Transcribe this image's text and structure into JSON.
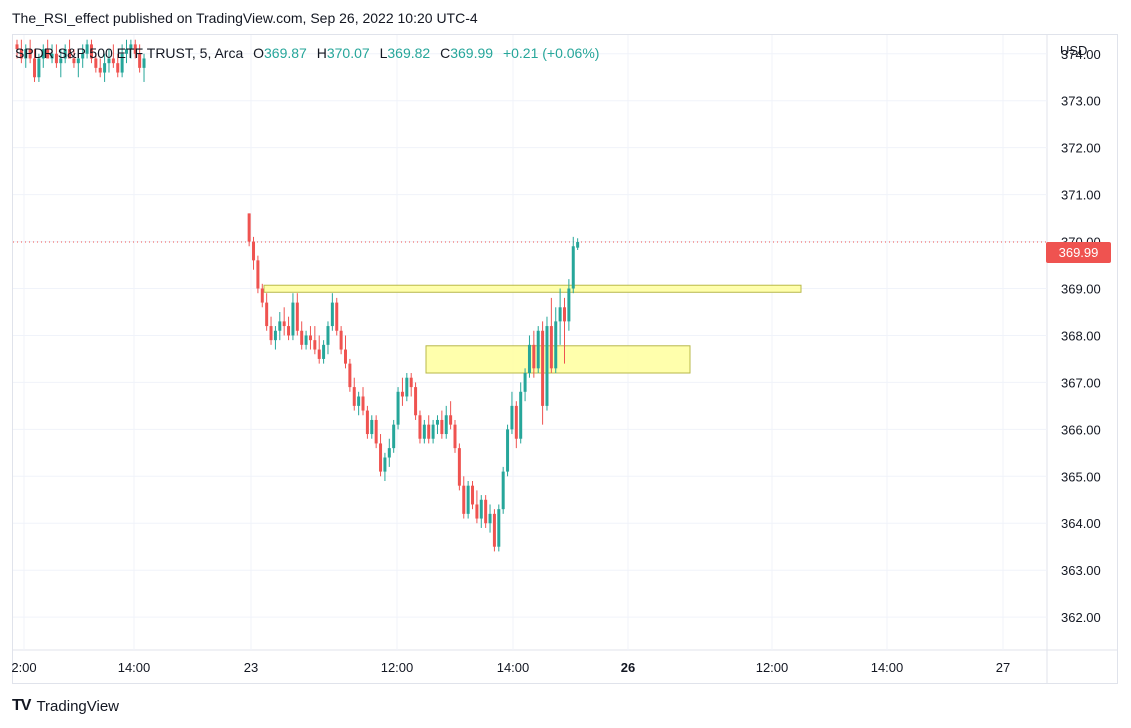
{
  "header": {
    "publish_line": "The_RSI_effect published on TradingView.com, Sep 26, 2022 10:20 UTC-4"
  },
  "legend": {
    "symbol": "SPDR S&P 500 ETF TRUST, 5, Arca",
    "open_label": "O",
    "open_value": "369.87",
    "high_label": "H",
    "high_value": "370.07",
    "low_label": "L",
    "low_value": "369.82",
    "close_label": "C",
    "close_value": "369.99",
    "change": "+0.21 (+0.06%)"
  },
  "price_axis": {
    "currency": "USD",
    "last_price": "369.99"
  },
  "footer": {
    "brand": "TradingView",
    "logo_icon": "tradingview-logo-icon"
  },
  "colors": {
    "up": "#26a69a",
    "down": "#ef5350",
    "zone_fill": "#ffff9e",
    "zone_border": "#b8b84a",
    "grid": "#f0f3fa",
    "price_line": "#ef5350"
  },
  "chart_data": {
    "type": "candlestick",
    "y_range": [
      361.3,
      374.4
    ],
    "y_ticks": [
      "362.00",
      "363.00",
      "364.00",
      "365.00",
      "366.00",
      "367.00",
      "368.00",
      "369.00",
      "370.00",
      "371.00",
      "372.00",
      "373.00",
      "374.00"
    ],
    "x_labels": [
      "2:00",
      "14:00",
      "23",
      "12:00",
      "14:00",
      "26",
      "12:00",
      "14:00",
      "27"
    ],
    "x_label_bold": [
      false,
      false,
      false,
      false,
      false,
      true,
      false,
      false,
      false
    ],
    "zones": [
      {
        "label": "",
        "from_bar": 0,
        "to_bar": 100,
        "low": 368.92,
        "high": 369.07
      },
      {
        "label": "",
        "from_bar": 37,
        "to_bar": 95,
        "low": 367.2,
        "high": 367.78
      }
    ],
    "current_price": 369.99,
    "candles": [
      [
        374.2,
        374.3,
        373.9,
        374.1
      ],
      [
        374.1,
        374.3,
        373.8,
        373.9
      ],
      [
        373.9,
        374.2,
        373.7,
        374.1
      ],
      [
        374.1,
        374.3,
        373.8,
        373.9
      ],
      [
        373.9,
        374.1,
        373.4,
        373.5
      ],
      [
        373.5,
        374.0,
        373.4,
        373.9
      ],
      [
        373.9,
        374.2,
        373.7,
        374.1
      ],
      [
        374.1,
        374.3,
        373.9,
        373.9
      ],
      [
        373.9,
        374.2,
        373.8,
        374.0
      ],
      [
        374.0,
        374.2,
        373.7,
        373.8
      ],
      [
        373.8,
        374.1,
        373.5,
        373.9
      ],
      [
        373.9,
        374.2,
        373.8,
        374.1
      ],
      [
        374.1,
        374.3,
        373.9,
        373.9
      ],
      [
        373.9,
        374.1,
        373.7,
        373.8
      ],
      [
        373.8,
        374.0,
        373.5,
        373.9
      ],
      [
        373.9,
        374.2,
        373.7,
        374.0
      ],
      [
        374.0,
        374.3,
        373.9,
        374.2
      ],
      [
        374.2,
        374.3,
        373.8,
        373.9
      ],
      [
        373.9,
        374.0,
        373.6,
        373.7
      ],
      [
        373.7,
        373.9,
        373.5,
        373.6
      ],
      [
        373.6,
        374.0,
        373.4,
        373.8
      ],
      [
        373.8,
        374.1,
        373.6,
        373.9
      ],
      [
        373.9,
        374.2,
        373.7,
        373.8
      ],
      [
        373.8,
        374.0,
        373.5,
        373.6
      ],
      [
        373.6,
        374.2,
        373.5,
        374.0
      ],
      [
        374.0,
        374.3,
        373.8,
        374.1
      ],
      [
        374.1,
        374.3,
        373.9,
        374.2
      ],
      [
        374.2,
        374.3,
        373.9,
        374.0
      ],
      [
        374.0,
        374.2,
        373.6,
        373.7
      ],
      [
        373.7,
        374.0,
        373.4,
        373.9
      ],
      [
        370.6,
        370.6,
        369.9,
        370.0
      ],
      [
        370.0,
        370.1,
        369.4,
        369.6
      ],
      [
        369.6,
        369.7,
        368.9,
        369.0
      ],
      [
        369.0,
        369.1,
        368.6,
        368.7
      ],
      [
        368.7,
        368.9,
        368.1,
        368.2
      ],
      [
        368.2,
        368.4,
        367.8,
        367.9
      ],
      [
        367.9,
        368.2,
        367.7,
        368.1
      ],
      [
        368.1,
        368.5,
        367.9,
        368.3
      ],
      [
        368.3,
        368.6,
        368.0,
        368.2
      ],
      [
        368.2,
        368.4,
        367.9,
        368.0
      ],
      [
        368.0,
        368.9,
        367.9,
        368.7
      ],
      [
        368.7,
        368.9,
        368.0,
        368.1
      ],
      [
        368.1,
        368.3,
        367.7,
        367.8
      ],
      [
        367.8,
        368.1,
        367.7,
        368.0
      ],
      [
        368.0,
        368.2,
        367.7,
        367.9
      ],
      [
        367.9,
        368.2,
        367.6,
        367.7
      ],
      [
        367.7,
        368.0,
        367.4,
        367.5
      ],
      [
        367.5,
        367.9,
        367.4,
        367.8
      ],
      [
        367.8,
        368.3,
        367.6,
        368.2
      ],
      [
        368.2,
        368.9,
        368.1,
        368.7
      ],
      [
        368.7,
        368.8,
        368.0,
        368.1
      ],
      [
        368.1,
        368.2,
        367.6,
        367.7
      ],
      [
        367.7,
        368.0,
        367.3,
        367.4
      ],
      [
        367.4,
        367.5,
        366.8,
        366.9
      ],
      [
        366.9,
        367.1,
        366.4,
        366.5
      ],
      [
        366.5,
        366.8,
        366.3,
        366.7
      ],
      [
        366.7,
        366.9,
        366.3,
        366.4
      ],
      [
        366.4,
        366.5,
        365.8,
        365.9
      ],
      [
        365.9,
        366.3,
        365.8,
        366.2
      ],
      [
        366.2,
        366.3,
        365.6,
        365.7
      ],
      [
        365.7,
        365.9,
        365.0,
        365.1
      ],
      [
        365.1,
        365.5,
        364.9,
        365.4
      ],
      [
        365.4,
        365.8,
        365.2,
        365.6
      ],
      [
        365.6,
        366.2,
        365.5,
        366.1
      ],
      [
        366.1,
        366.9,
        366.0,
        366.8
      ],
      [
        366.8,
        367.1,
        366.5,
        366.7
      ],
      [
        366.7,
        367.2,
        366.6,
        367.1
      ],
      [
        367.1,
        367.2,
        366.7,
        366.9
      ],
      [
        366.9,
        367.0,
        366.2,
        366.3
      ],
      [
        366.3,
        366.4,
        365.7,
        365.8
      ],
      [
        365.8,
        366.2,
        365.7,
        366.1
      ],
      [
        366.1,
        366.3,
        365.7,
        365.8
      ],
      [
        365.8,
        366.2,
        365.7,
        366.1
      ],
      [
        366.1,
        366.3,
        365.9,
        366.2
      ],
      [
        366.2,
        366.4,
        365.8,
        365.9
      ],
      [
        365.9,
        366.5,
        365.8,
        366.3
      ],
      [
        366.3,
        366.6,
        366.0,
        366.1
      ],
      [
        366.1,
        366.2,
        365.5,
        365.6
      ],
      [
        365.6,
        365.7,
        364.7,
        364.8
      ],
      [
        364.8,
        365.0,
        364.1,
        364.2
      ],
      [
        364.2,
        364.9,
        364.1,
        364.8
      ],
      [
        364.8,
        364.9,
        364.3,
        364.4
      ],
      [
        364.4,
        364.7,
        364.0,
        364.1
      ],
      [
        364.1,
        364.6,
        363.9,
        364.5
      ],
      [
        364.5,
        364.6,
        363.9,
        364.0
      ],
      [
        364.0,
        364.4,
        363.8,
        364.2
      ],
      [
        364.2,
        364.3,
        363.4,
        363.5
      ],
      [
        363.5,
        364.4,
        363.4,
        364.3
      ],
      [
        364.3,
        365.2,
        364.2,
        365.1
      ],
      [
        365.1,
        366.1,
        365.0,
        366.0
      ],
      [
        366.0,
        366.8,
        365.9,
        366.5
      ],
      [
        366.5,
        366.6,
        365.6,
        365.8
      ],
      [
        365.8,
        367.0,
        365.7,
        366.8
      ],
      [
        366.8,
        367.3,
        366.6,
        367.2
      ],
      [
        367.2,
        368.0,
        367.1,
        367.8
      ],
      [
        367.8,
        368.1,
        367.1,
        367.3
      ],
      [
        367.3,
        368.2,
        367.2,
        368.1
      ],
      [
        368.1,
        368.3,
        366.1,
        366.5
      ],
      [
        366.5,
        368.4,
        366.4,
        368.2
      ],
      [
        368.2,
        368.8,
        367.2,
        367.3
      ],
      [
        367.3,
        368.6,
        367.2,
        368.3
      ],
      [
        368.3,
        369.0,
        367.8,
        368.6
      ],
      [
        368.6,
        368.8,
        367.4,
        368.3
      ],
      [
        368.3,
        369.2,
        368.1,
        369.0
      ],
      [
        369.0,
        370.1,
        368.9,
        369.9
      ],
      [
        369.87,
        370.07,
        369.82,
        369.99
      ]
    ]
  }
}
